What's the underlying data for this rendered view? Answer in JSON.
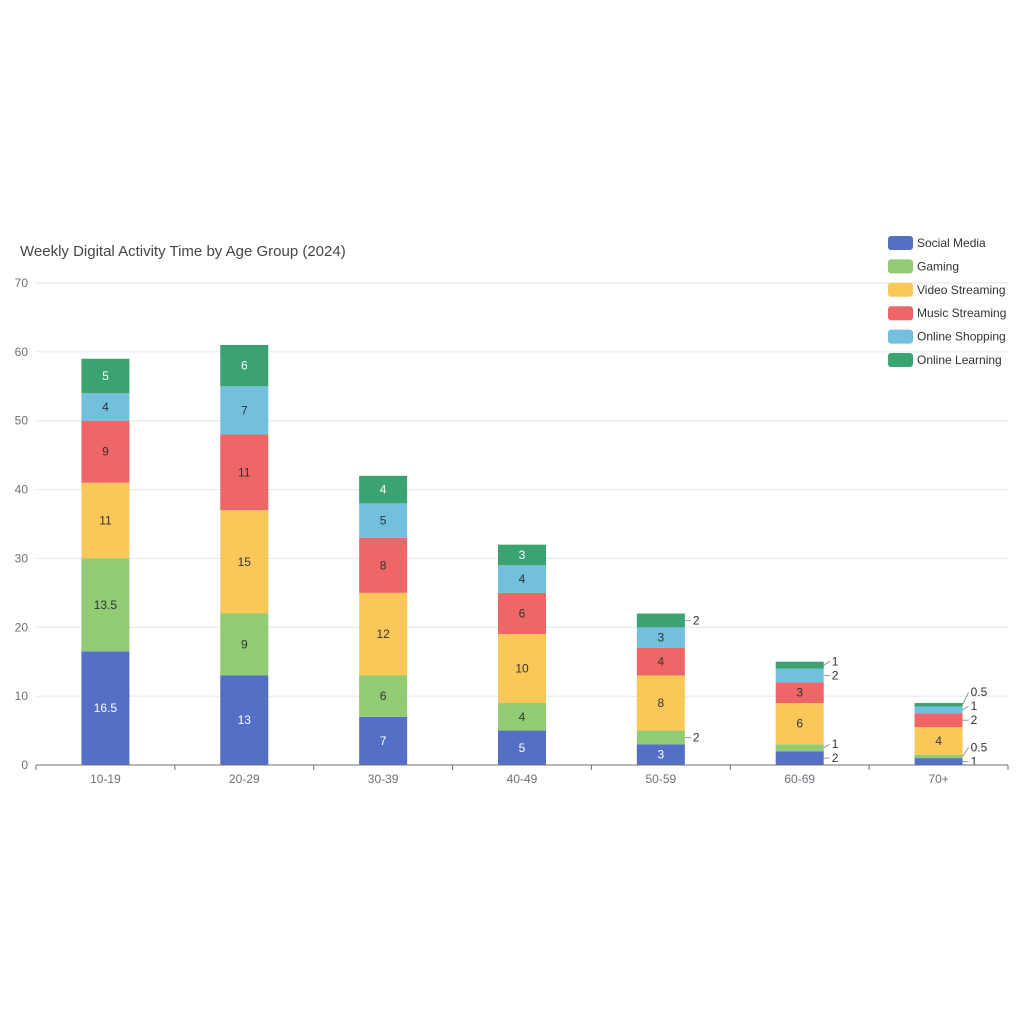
{
  "chart_data": {
    "type": "bar",
    "stacked": true,
    "title": "Weekly Digital Activity Time by Age Group (2024)",
    "xlabel": "",
    "ylabel": "",
    "ylim": [
      0,
      70
    ],
    "yticks": [
      0,
      10,
      20,
      30,
      40,
      50,
      60,
      70
    ],
    "grid": true,
    "legend_position": "top-right",
    "categories": [
      "10-19",
      "20-29",
      "30-39",
      "40-49",
      "50-59",
      "60-69",
      "70+"
    ],
    "series": [
      {
        "name": "Social Media",
        "color": "#5470c6",
        "values": [
          16.5,
          13,
          7,
          5,
          3,
          2,
          1
        ]
      },
      {
        "name": "Gaming",
        "color": "#91cc75",
        "values": [
          13.5,
          9,
          6,
          4,
          2,
          1,
          0.5
        ]
      },
      {
        "name": "Video Streaming",
        "color": "#fac858",
        "values": [
          11,
          15,
          12,
          10,
          8,
          6,
          4
        ]
      },
      {
        "name": "Music Streaming",
        "color": "#ee6666",
        "values": [
          9,
          11,
          8,
          6,
          4,
          3,
          2
        ]
      },
      {
        "name": "Online Shopping",
        "color": "#73c0de",
        "values": [
          4,
          7,
          5,
          4,
          3,
          2,
          1
        ]
      },
      {
        "name": "Online Learning",
        "color": "#3ba272",
        "values": [
          5,
          6,
          4,
          3,
          2,
          1,
          0.5
        ]
      }
    ]
  }
}
